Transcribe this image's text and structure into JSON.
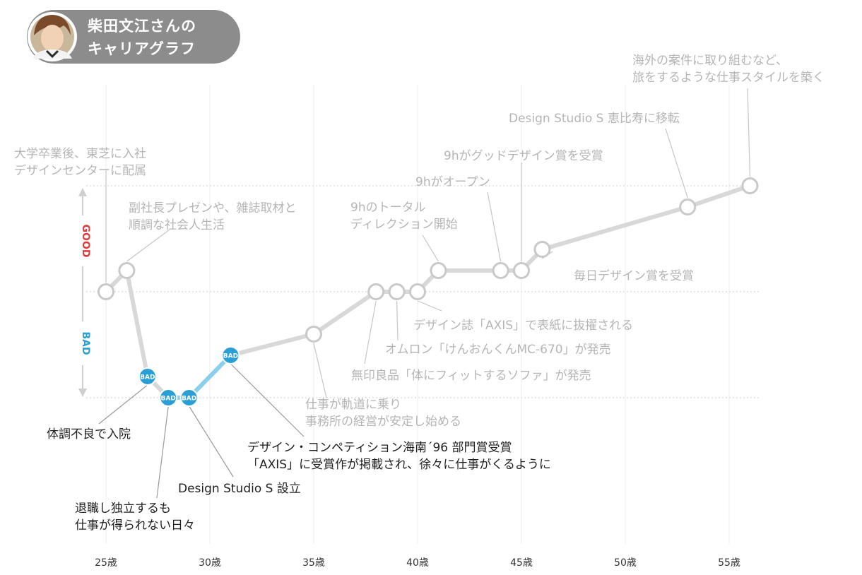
{
  "header": {
    "title_line1": "柴田文江さんの",
    "title_line2": "キャリアグラフ"
  },
  "colors": {
    "good": "#e03a3a",
    "bad": "#2a9fd6",
    "bad_line": "#8ad0ec",
    "line": "#d8d8d8",
    "node_stroke": "#c9c9c9",
    "header_bg": "#8c8c8c"
  },
  "chart_data": {
    "type": "line",
    "x_ticks": [
      {
        "value": 25,
        "label": "25歳"
      },
      {
        "value": 30,
        "label": "30歳"
      },
      {
        "value": 35,
        "label": "35歳"
      },
      {
        "value": 40,
        "label": "40歳"
      },
      {
        "value": 45,
        "label": "45歳"
      },
      {
        "value": 50,
        "label": "50歳"
      },
      {
        "value": 55,
        "label": "55歳"
      }
    ],
    "y_labels": {
      "good": "GOOD",
      "bad": "BAD"
    },
    "ylim": [
      -1,
      1
    ],
    "bad_badge": "BAD",
    "points": [
      {
        "age": 25,
        "value": 0
      },
      {
        "age": 26,
        "value": 0.2
      },
      {
        "age": 27,
        "value": -0.8,
        "bad": true
      },
      {
        "age": 28,
        "value": -1,
        "bad": true
      },
      {
        "age": 29,
        "value": -1,
        "bad": true
      },
      {
        "age": 31,
        "value": -0.6,
        "bad": true
      },
      {
        "age": 35,
        "value": -0.4
      },
      {
        "age": 38,
        "value": 0
      },
      {
        "age": 39,
        "value": 0
      },
      {
        "age": 40,
        "value": 0
      },
      {
        "age": 41,
        "value": 0.2
      },
      {
        "age": 44,
        "value": 0.2
      },
      {
        "age": 45,
        "value": 0.2
      },
      {
        "age": 46,
        "value": 0.4
      },
      {
        "age": 53,
        "value": 0.8
      },
      {
        "age": 56,
        "value": 1
      }
    ],
    "annotations": [
      {
        "lines": [
          "大学卒業後、東芝に入社",
          "デザインセンターに配属"
        ],
        "dark": false
      },
      {
        "lines": [
          "副社長プレゼンや、雑誌取材と",
          "順調な社会人生活"
        ],
        "dark": false
      },
      {
        "lines": [
          "体調不良で入院"
        ],
        "dark": true
      },
      {
        "lines": [
          "退職し独立するも",
          "仕事が得られない日々"
        ],
        "dark": true
      },
      {
        "lines": [
          "Design Studio S 設立"
        ],
        "dark": true
      },
      {
        "lines": [
          "デザイン・コンペティション海南´96 部門賞受賞",
          "「AXIS」に受賞作が掲載され、徐々に仕事がくるように"
        ],
        "dark": true
      },
      {
        "lines": [
          "仕事が軌道に乗り",
          "事務所の経営が安定し始める"
        ],
        "dark": false
      },
      {
        "lines": [
          "無印良品「体にフィットするソファ」が発売"
        ],
        "dark": false
      },
      {
        "lines": [
          "オムロン「けんおんくんMC-670」が発売"
        ],
        "dark": false
      },
      {
        "lines": [
          "デザイン誌「AXIS」で表紙に抜擢される"
        ],
        "dark": false
      },
      {
        "lines": [
          "9hのトータル",
          "ディレクション開始"
        ],
        "dark": false
      },
      {
        "lines": [
          "9hがオープン"
        ],
        "dark": false
      },
      {
        "lines": [
          "9hがグッドデザイン賞を受賞"
        ],
        "dark": false
      },
      {
        "lines": [
          "毎日デザイン賞を受賞"
        ],
        "dark": false
      },
      {
        "lines": [
          "Design Studio S 恵比寿に移転"
        ],
        "dark": false
      },
      {
        "lines": [
          "海外の案件に取り組むなど、",
          "旅をするような仕事スタイルを築く"
        ],
        "dark": false
      }
    ]
  }
}
